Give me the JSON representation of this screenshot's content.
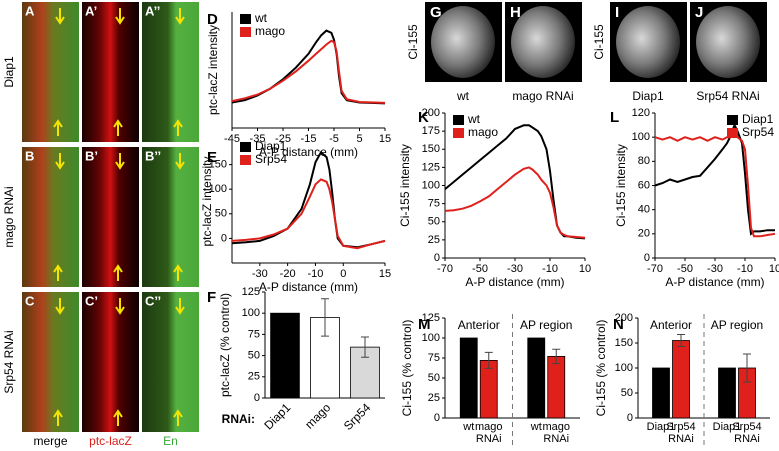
{
  "image_panels": {
    "row_labels": [
      "Diap1",
      "mago RNAi",
      "Srp54 RNAi"
    ],
    "tiles": [
      [
        "A",
        "A’",
        "A’’"
      ],
      [
        "B",
        "B’",
        "B’’"
      ],
      [
        "C",
        "C’",
        "C’’"
      ]
    ],
    "column_labels": [
      "merge",
      "ptc-lacZ",
      "En"
    ]
  },
  "wing_panels": {
    "ylabels": [
      "Ci-155",
      "Ci-155"
    ],
    "tiles": [
      {
        "letter": "G",
        "caption": "wt"
      },
      {
        "letter": "H",
        "caption": "mago RNAi"
      },
      {
        "letter": "I",
        "caption": "Diap1"
      },
      {
        "letter": "J",
        "caption": "Srp54 RNAi"
      }
    ]
  },
  "chart_data": [
    {
      "type": "line",
      "panel": "D",
      "ylabel": "ptc-lacZ intensity",
      "xlabel": "A-P distance (mm)",
      "legend": "upper left",
      "x": [
        -45,
        -40,
        -35,
        -30,
        -25,
        -20,
        -15,
        -12,
        -10,
        -8,
        -6,
        -5,
        -4,
        -3,
        -2,
        0,
        5,
        15
      ],
      "series": [
        {
          "name": "wt",
          "color": "#000000",
          "values": [
            5,
            10,
            20,
            35,
            55,
            80,
            110,
            135,
            150,
            160,
            155,
            140,
            110,
            60,
            25,
            10,
            5,
            3
          ]
        },
        {
          "name": "mago",
          "color": "#e0201b",
          "values": [
            8,
            14,
            22,
            35,
            52,
            72,
            95,
            110,
            120,
            130,
            138,
            135,
            115,
            70,
            30,
            12,
            6,
            4
          ]
        }
      ],
      "xlim": [
        -45,
        15
      ],
      "xticks": [
        -45,
        -35,
        -25,
        -15,
        -5,
        5,
        15
      ],
      "ylim": [
        -50,
        200
      ]
    },
    {
      "type": "line",
      "panel": "E",
      "ylabel": "ptc-lacZ intensity",
      "xlabel": "A-P distance (mm)",
      "legend": "upper left",
      "x": [
        -40,
        -35,
        -30,
        -25,
        -20,
        -15,
        -12,
        -10,
        -8,
        -6,
        -5,
        -4,
        -3,
        -2,
        0,
        5,
        10,
        15
      ],
      "series": [
        {
          "name": "Diap1",
          "color": "#000000",
          "values": [
            -10,
            -8,
            -5,
            5,
            20,
            60,
            110,
            155,
            175,
            165,
            140,
            95,
            40,
            0,
            -15,
            -18,
            -12,
            -5
          ]
        },
        {
          "name": "Srp54",
          "color": "#e0201b",
          "values": [
            -5,
            -3,
            0,
            8,
            20,
            50,
            85,
            110,
            120,
            115,
            100,
            75,
            40,
            5,
            -15,
            -20,
            -12,
            -5
          ]
        }
      ],
      "xlim": [
        -40,
        15
      ],
      "xticks": [
        -30,
        -20,
        -10,
        0,
        15
      ],
      "ylim": [
        -50,
        200
      ],
      "yticks": [
        0,
        50,
        100,
        150
      ]
    },
    {
      "type": "bar",
      "panel": "F",
      "ylabel": "ptc-lacZ (% control)",
      "xlabel": "RNAi:",
      "categories": [
        "Diap1",
        "mago",
        "Srp54"
      ],
      "values": [
        100,
        95,
        60
      ],
      "errors": [
        null,
        22,
        12
      ],
      "colors": [
        "#000000",
        "#ffffff",
        "#d9d9d9"
      ],
      "ylim": [
        0,
        125
      ],
      "yticks": [
        0,
        25,
        50,
        75,
        100,
        125
      ]
    },
    {
      "type": "line",
      "panel": "K",
      "ylabel": "Ci-155 intensity",
      "xlabel": "A-P distance (mm)",
      "legend": "upper left",
      "x": [
        -70,
        -65,
        -60,
        -55,
        -50,
        -45,
        -40,
        -35,
        -30,
        -25,
        -22,
        -20,
        -17,
        -15,
        -12,
        -10,
        -8,
        -6,
        -4,
        -2,
        0,
        5,
        10
      ],
      "series": [
        {
          "name": "wt",
          "color": "#000000",
          "values": [
            95,
            105,
            115,
            125,
            135,
            145,
            155,
            165,
            178,
            183,
            183,
            180,
            175,
            168,
            150,
            120,
            80,
            45,
            35,
            30,
            30,
            28,
            27
          ]
        },
        {
          "name": "mago",
          "color": "#e0201b",
          "values": [
            65,
            66,
            68,
            72,
            78,
            85,
            95,
            105,
            115,
            123,
            125,
            122,
            115,
            108,
            100,
            90,
            70,
            45,
            35,
            32,
            30,
            29,
            28
          ]
        }
      ],
      "xlim": [
        -70,
        10
      ],
      "xticks": [
        -70,
        -50,
        -30,
        -10,
        10
      ],
      "ylim": [
        0,
        200
      ],
      "yticks": [
        0,
        25,
        50,
        75,
        100,
        125,
        150,
        175,
        200
      ]
    },
    {
      "type": "line",
      "panel": "L",
      "ylabel": "Ci-155 intensity",
      "xlabel": "A-P distance (mm)",
      "legend": "upper right",
      "x": [
        -70,
        -65,
        -60,
        -55,
        -50,
        -45,
        -40,
        -35,
        -30,
        -25,
        -22,
        -20,
        -17,
        -15,
        -12,
        -10,
        -8,
        -6,
        -4,
        -2,
        0,
        5,
        10
      ],
      "series": [
        {
          "name": "Diap1",
          "color": "#000000",
          "values": [
            60,
            62,
            65,
            63,
            65,
            67,
            68,
            75,
            82,
            90,
            95,
            100,
            110,
            105,
            95,
            70,
            40,
            20,
            22,
            22,
            22,
            23,
            23
          ]
        },
        {
          "name": "Srp54",
          "color": "#e0201b",
          "values": [
            100,
            98,
            100,
            97,
            100,
            98,
            100,
            97,
            100,
            98,
            100,
            100,
            102,
            100,
            97,
            90,
            60,
            25,
            18,
            18,
            18,
            19,
            20
          ]
        }
      ],
      "xlim": [
        -70,
        10
      ],
      "xticks": [
        -70,
        -50,
        -30,
        -10,
        10
      ],
      "ylim": [
        0,
        120
      ],
      "yticks": [
        0,
        20,
        40,
        60,
        80,
        100,
        120
      ]
    },
    {
      "type": "bar",
      "panel": "M",
      "ylabel": "Ci-155 (% control)",
      "groups": [
        "Anterior",
        "AP region"
      ],
      "categories": [
        "wt",
        "mago RNAi",
        "wt",
        "mago RNAi"
      ],
      "values": [
        100,
        72,
        100,
        77
      ],
      "errors": [
        null,
        10,
        null,
        9
      ],
      "colors": [
        "#000000",
        "#e0201b",
        "#000000",
        "#e0201b"
      ],
      "ylim": [
        0,
        125
      ],
      "yticks": [
        0,
        25,
        50,
        75,
        100,
        125
      ]
    },
    {
      "type": "bar",
      "panel": "N",
      "ylabel": "Ci-155 (% control)",
      "groups": [
        "Anterior",
        "AP region"
      ],
      "categories": [
        "Diap1",
        "Srp54 RNAi",
        "Diap1",
        "Srp54 RNAi"
      ],
      "values": [
        100,
        155,
        100,
        100
      ],
      "errors": [
        null,
        12,
        null,
        28
      ],
      "colors": [
        "#000000",
        "#e0201b",
        "#000000",
        "#e0201b"
      ],
      "ylim": [
        0,
        200
      ],
      "yticks": [
        0,
        50,
        100,
        150,
        200
      ]
    }
  ]
}
